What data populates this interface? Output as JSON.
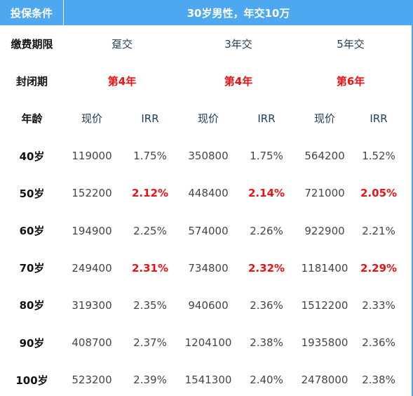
{
  "header": {
    "left_label": "投保条件",
    "right_label": "30岁男性，年交10万"
  },
  "labels": {
    "payment_term": "缴费期限",
    "lock_period": "封闭期",
    "age": "年龄",
    "value": "现价",
    "irr": "IRR"
  },
  "plans": [
    {
      "term": "趸交",
      "lock": "第4年"
    },
    {
      "term": "3年交",
      "lock": "第4年"
    },
    {
      "term": "5年交",
      "lock": "第6年"
    }
  ],
  "rows": [
    {
      "age": "40岁",
      "cells": [
        {
          "value": "119000",
          "irr": "1.75%",
          "highlight": false
        },
        {
          "value": "350800",
          "irr": "1.75%",
          "highlight": false
        },
        {
          "value": "564200",
          "irr": "1.52%",
          "highlight": false
        }
      ]
    },
    {
      "age": "50岁",
      "cells": [
        {
          "value": "152200",
          "irr": "2.12%",
          "highlight": true
        },
        {
          "value": "448400",
          "irr": "2.14%",
          "highlight": true
        },
        {
          "value": "721000",
          "irr": "2.05%",
          "highlight": true
        }
      ]
    },
    {
      "age": "60岁",
      "cells": [
        {
          "value": "194900",
          "irr": "2.25%",
          "highlight": false
        },
        {
          "value": "574000",
          "irr": "2.26%",
          "highlight": false
        },
        {
          "value": "922900",
          "irr": "2.21%",
          "highlight": false
        }
      ]
    },
    {
      "age": "70岁",
      "cells": [
        {
          "value": "249400",
          "irr": "2.31%",
          "highlight": true
        },
        {
          "value": "734800",
          "irr": "2.32%",
          "highlight": true
        },
        {
          "value": "1181400",
          "irr": "2.29%",
          "highlight": true
        }
      ]
    },
    {
      "age": "80岁",
      "cells": [
        {
          "value": "319300",
          "irr": "2.35%",
          "highlight": false
        },
        {
          "value": "940600",
          "irr": "2.36%",
          "highlight": false
        },
        {
          "value": "1512200",
          "irr": "2.33%",
          "highlight": false
        }
      ]
    },
    {
      "age": "90岁",
      "cells": [
        {
          "value": "408700",
          "irr": "2.37%",
          "highlight": false
        },
        {
          "value": "1204100",
          "irr": "2.38%",
          "highlight": false
        },
        {
          "value": "1935800",
          "irr": "2.36%",
          "highlight": false
        }
      ]
    },
    {
      "age": "100岁",
      "cells": [
        {
          "value": "523200",
          "irr": "2.39%",
          "highlight": false
        },
        {
          "value": "1541300",
          "irr": "2.40%",
          "highlight": false
        },
        {
          "value": "2478000",
          "irr": "2.38%",
          "highlight": false
        }
      ]
    }
  ],
  "colors": {
    "header_bg": "#4ea8f0",
    "highlight": "#ee1111",
    "heading_text": "#1f3b5c"
  }
}
